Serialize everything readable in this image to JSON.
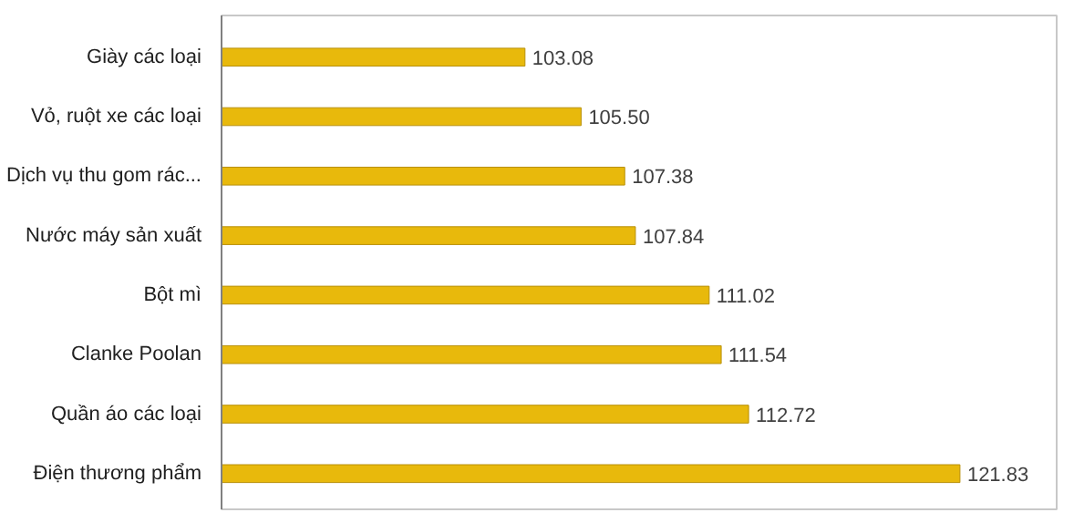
{
  "chart_data": {
    "type": "bar",
    "orientation": "horizontal",
    "categories": [
      "Giày các loại",
      "Vỏ, ruột xe các loại",
      "Dịch vụ thu gom rác...",
      "Nước máy sản xuất",
      "Bột mì",
      "Clanke Poolan",
      "Quần áo các loại",
      "Điện thương phẩm"
    ],
    "values": [
      103.08,
      105.5,
      107.38,
      107.84,
      111.02,
      111.54,
      112.72,
      121.83
    ],
    "value_labels": [
      "103.08",
      "105.50",
      "107.38",
      "107.84",
      "111.02",
      "111.54",
      "112.72",
      "121.83"
    ],
    "color": "#e8b90c",
    "xlim": [
      90,
      126
    ],
    "tick_labels": "y",
    "grid": false
  }
}
